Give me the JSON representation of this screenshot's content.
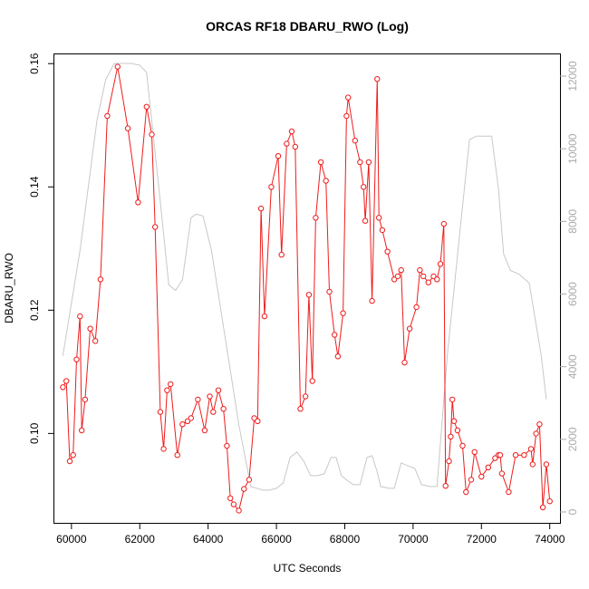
{
  "chart_data": {
    "type": "line",
    "title": "ORCAS RF18 DBARU_RWO (Log)",
    "xlabel": "UTC Seconds",
    "ylabel": "DBARU_RWO",
    "xlim": [
      59500,
      74300
    ],
    "ylim": [
      0.0855,
      0.1615
    ],
    "xticks": [
      60000,
      62000,
      64000,
      66000,
      68000,
      70000,
      72000,
      74000
    ],
    "yticks": [
      0.1,
      0.12,
      0.14,
      0.16
    ],
    "y2lim": [
      -300,
      12600
    ],
    "y2ticks": [
      0,
      2000,
      4000,
      6000,
      8000,
      10000,
      12000
    ],
    "grid": false,
    "colors": {
      "primary": "#ee1c1c",
      "secondary": "#c8c8c8",
      "axis_right": "#aaaaaa"
    },
    "series": [
      {
        "axis": "left",
        "style": "line+circle",
        "x": [
          59750,
          59850,
          59950,
          60050,
          60150,
          60250,
          60300,
          60400,
          60550,
          60700,
          60850,
          61050,
          61350,
          61650,
          61950,
          62200,
          62350,
          62450,
          62600,
          62700,
          62800,
          62900,
          63100,
          63250,
          63400,
          63500,
          63700,
          63900,
          64050,
          64150,
          64300,
          64450,
          64550,
          64650,
          64750,
          64900,
          65050,
          65200,
          65350,
          65450,
          65550,
          65650,
          65850,
          66050,
          66150,
          66300,
          66450,
          66550,
          66700,
          66850,
          66950,
          67050,
          67150,
          67300,
          67450,
          67550,
          67700,
          67800,
          67950,
          68050,
          68100,
          68300,
          68450,
          68550,
          68600,
          68700,
          68800,
          68950,
          69000,
          69100,
          69250,
          69450,
          69550,
          69650,
          69750,
          69900,
          70100,
          70200,
          70300,
          70450,
          70600,
          70700,
          70800,
          70900,
          70950,
          71050,
          71100,
          71150,
          71200,
          71300,
          71450,
          71550,
          71700,
          71800,
          72000,
          72200,
          72400,
          72500,
          72550,
          72600,
          72800,
          73000,
          73250,
          73450,
          73500,
          73600,
          73700,
          73800,
          73900,
          74000
        ],
        "y": [
          0.1075,
          0.1085,
          0.0955,
          0.0965,
          0.112,
          0.119,
          0.1005,
          0.1055,
          0.117,
          0.115,
          0.125,
          0.1515,
          0.1595,
          0.1495,
          0.1375,
          0.153,
          0.1485,
          0.1335,
          0.1035,
          0.0975,
          0.107,
          0.108,
          0.0965,
          0.1015,
          0.102,
          0.1025,
          0.1055,
          0.1005,
          0.106,
          0.1035,
          0.107,
          0.104,
          0.098,
          0.0895,
          0.0885,
          0.0875,
          0.091,
          0.0925,
          0.1025,
          0.102,
          0.1365,
          0.119,
          0.14,
          0.145,
          0.129,
          0.147,
          0.149,
          0.1465,
          0.104,
          0.106,
          0.1225,
          0.1085,
          0.135,
          0.144,
          0.141,
          0.123,
          0.116,
          0.1125,
          0.1195,
          0.1515,
          0.1545,
          0.1475,
          0.144,
          0.14,
          0.1345,
          0.144,
          0.1215,
          0.1575,
          0.135,
          0.133,
          0.1295,
          0.125,
          0.1255,
          0.1265,
          0.1115,
          0.117,
          0.1205,
          0.1265,
          0.1255,
          0.1245,
          0.1255,
          0.125,
          0.1275,
          0.134,
          0.0915,
          0.0955,
          0.0995,
          0.1055,
          0.102,
          0.1005,
          0.098,
          0.0905,
          0.0925,
          0.097,
          0.093,
          0.0945,
          0.096,
          0.0965,
          0.0965,
          0.0935,
          0.0905,
          0.0965,
          0.0965,
          0.0975,
          0.095,
          0.1,
          0.1015,
          0.088,
          0.095,
          0.089
        ]
      },
      {
        "axis": "right",
        "style": "line",
        "x": [
          59750,
          60250,
          60750,
          61000,
          61250,
          61750,
          62000,
          62200,
          62550,
          62850,
          63050,
          63250,
          63500,
          63650,
          63850,
          64100,
          64500,
          64900,
          65250,
          65600,
          65800,
          66000,
          66200,
          66400,
          66600,
          66800,
          67000,
          67200,
          67400,
          67600,
          67750,
          67900,
          68100,
          68250,
          68450,
          68650,
          68800,
          68950,
          69050,
          69300,
          69450,
          69650,
          69900,
          70050,
          70250,
          70500,
          70700,
          71000,
          71400,
          71650,
          71850,
          72050,
          72300,
          72500,
          72650,
          72850,
          73100,
          73400,
          73750,
          73900
        ],
        "y": [
          4300,
          7200,
          10800,
          11900,
          12350,
          12350,
          12300,
          12100,
          9000,
          6250,
          6100,
          6400,
          8100,
          8200,
          8150,
          7200,
          4800,
          2400,
          700,
          600,
          600,
          650,
          800,
          1500,
          1650,
          1400,
          1000,
          1000,
          1050,
          1500,
          1500,
          1000,
          850,
          750,
          750,
          1500,
          1550,
          1100,
          700,
          650,
          650,
          1350,
          1250,
          1200,
          750,
          700,
          700,
          4300,
          8000,
          10250,
          10350,
          10350,
          10350,
          8900,
          7100,
          6650,
          6550,
          6300,
          4300,
          3100
        ]
      }
    ]
  }
}
